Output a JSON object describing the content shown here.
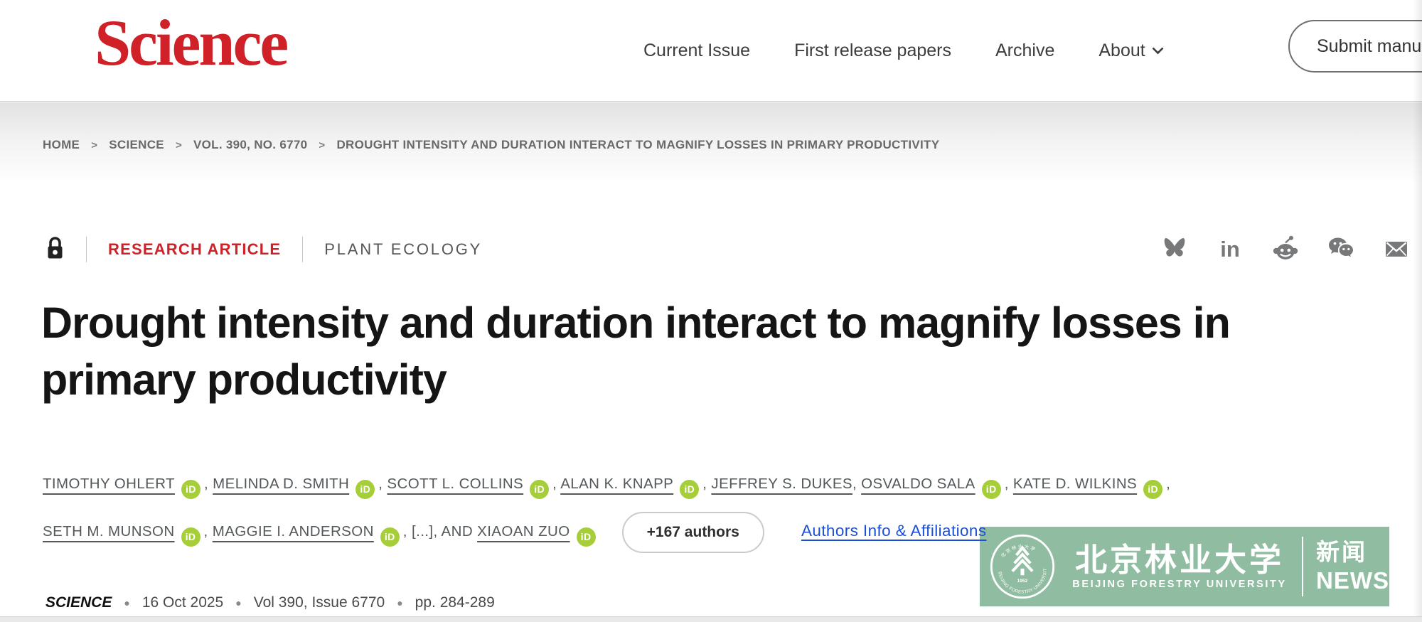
{
  "colors": {
    "brand_red": "#d02028",
    "orcid_green": "#a6ce39",
    "link_blue": "#1a4fd6",
    "watermark_green": "#8cbb9e"
  },
  "header": {
    "logo": "Science",
    "nav": [
      {
        "id": "current-issue",
        "label": "Current Issue"
      },
      {
        "id": "first-release-papers",
        "label": "First release papers"
      },
      {
        "id": "archive",
        "label": "Archive"
      },
      {
        "id": "about",
        "label": "About",
        "has_dropdown": true
      }
    ],
    "submit_button": "Submit manuscript"
  },
  "breadcrumb": {
    "items": [
      "HOME",
      "SCIENCE",
      "VOL. 390, NO. 6770",
      "DROUGHT INTENSITY AND DURATION INTERACT TO MAGNIFY LOSSES IN PRIMARY PRODUCTIVITY"
    ]
  },
  "article": {
    "access": "locked",
    "type_label": "RESEARCH ARTICLE",
    "category_label": "PLANT ECOLOGY",
    "share_icons": [
      "bluesky",
      "linkedin",
      "reddit",
      "wechat",
      "email"
    ],
    "title": "Drought intensity and duration interact to magnify losses in primary productivity",
    "orcid_label": "iD",
    "authors": [
      {
        "name": "TIMOTHY OHLERT",
        "orcid": true
      },
      {
        "name": "MELINDA D. SMITH",
        "orcid": true
      },
      {
        "name": "SCOTT L. COLLINS",
        "orcid": true
      },
      {
        "name": "ALAN K. KNAPP",
        "orcid": true
      },
      {
        "name": "JEFFREY S. DUKES",
        "orcid": false
      },
      {
        "name": "OSVALDO SALA",
        "orcid": true
      },
      {
        "name": "KATE D. WILKINS",
        "orcid": true
      },
      {
        "name": "SETH M. MUNSON",
        "orcid": true
      },
      {
        "name": "MAGGIE I. ANDERSON",
        "orcid": true
      },
      {
        "name": "[...]",
        "orcid": false,
        "link": false
      },
      {
        "name": "XIAOAN ZUO",
        "orcid": true,
        "prefix": "AND"
      }
    ],
    "more_authors_button": "+167 authors",
    "authors_info_link": "Authors Info & Affiliations",
    "meta": {
      "journal": "SCIENCE",
      "date": "16 Oct 2025",
      "volume": "Vol 390, Issue 6770",
      "pages": "pp. 284-289"
    }
  },
  "watermark": {
    "cn_name": "北京林业大学",
    "en_name": "BEIJING FORESTRY UNIVERSITY",
    "seal_en": "BEIJING FORESTRY UNIVERSITY",
    "seal_year": "1952",
    "news_cn": "新闻",
    "news_en": "NEWS"
  }
}
